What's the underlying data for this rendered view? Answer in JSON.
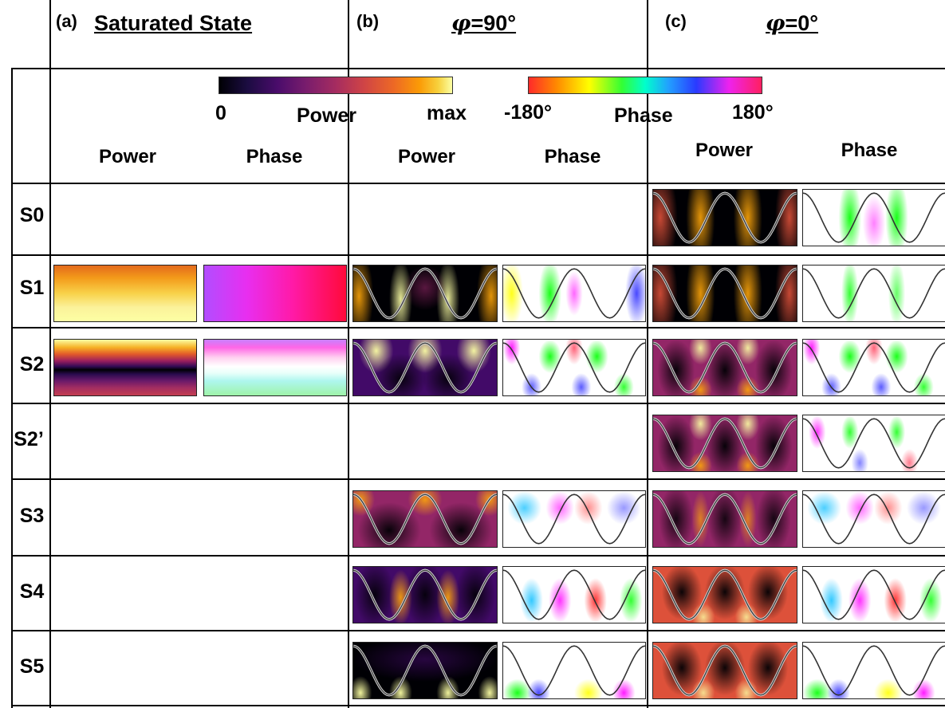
{
  "sections": {
    "a": {
      "letter": "(a)",
      "title": "Saturated State"
    },
    "b": {
      "letter": "(b)",
      "title_sym": "φ",
      "title_val": "=90°"
    },
    "c": {
      "letter": "(c)",
      "title_sym": "φ",
      "title_val": "=0°"
    }
  },
  "scales": {
    "power": {
      "min": "0",
      "label": "Power",
      "max": "max"
    },
    "phase": {
      "min": "-180°",
      "label": "Phase",
      "max": "180°"
    }
  },
  "column_headers": {
    "power": "Power",
    "phase": "Phase"
  },
  "rows": [
    "S0",
    "S1",
    "S2",
    "S2’",
    "S3",
    "S4",
    "S5"
  ],
  "colors": {
    "inferno": [
      "#000004",
      "#420a68",
      "#932667",
      "#dd513a",
      "#fca50a",
      "#fcffa4"
    ],
    "phase_rainbow": [
      "#ff2020",
      "#ff9900",
      "#ffff00",
      "#00ff00",
      "#00bbff",
      "#3333ff",
      "#ff00ff",
      "#ff2040"
    ]
  }
}
